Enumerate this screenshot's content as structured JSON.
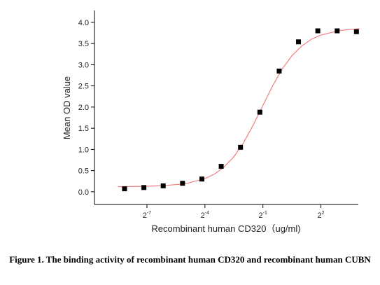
{
  "chart_data": {
    "type": "scatter",
    "xlabel": "Recombinant human  CD320（ug/ml)",
    "ylabel": "Mean OD value",
    "caption": "Figure 1. The binding activity of recombinant human CD320 and recombinant human CUBN",
    "xscale": "log2",
    "xlim": [
      0.00119,
      15.3
    ],
    "xticks": [
      {
        "value": 0.0078125,
        "label": "2^-7"
      },
      {
        "value": 0.0625,
        "label": "2^-4"
      },
      {
        "value": 0.5,
        "label": "2^-1"
      },
      {
        "value": 4,
        "label": "2^2"
      }
    ],
    "ylim": [
      -0.3,
      4.28
    ],
    "yticks": [
      {
        "value": 0,
        "label": "0.0"
      },
      {
        "value": 0.5,
        "label": "0.5"
      },
      {
        "value": 1,
        "label": "1.0"
      },
      {
        "value": 1.5,
        "label": "1.5"
      },
      {
        "value": 2,
        "label": "2.0"
      },
      {
        "value": 2.5,
        "label": "2.5"
      },
      {
        "value": 3,
        "label": "3.0"
      },
      {
        "value": 3.5,
        "label": "3.5"
      },
      {
        "value": 4,
        "label": "4.0"
      }
    ],
    "x": [
      0.0035,
      0.007,
      0.014,
      0.028,
      0.056,
      0.112,
      0.224,
      0.448,
      0.896,
      1.79,
      3.58,
      7.17,
      14.3
    ],
    "values": [
      0.07,
      0.1,
      0.14,
      0.2,
      0.3,
      0.6,
      1.05,
      1.88,
      2.85,
      3.54,
      3.8,
      3.8,
      3.78
    ],
    "color": "#000000",
    "fit_curve": {
      "color": "#f08080",
      "x": [
        0.00276,
        0.0078125,
        0.015625,
        0.03125,
        0.0625,
        0.0884,
        0.125,
        0.177,
        0.25,
        0.354,
        0.5,
        0.707,
        1,
        1.414,
        2,
        2.83,
        4,
        8,
        16
      ],
      "values": [
        0.12,
        0.13,
        0.15,
        0.19,
        0.31,
        0.42,
        0.59,
        0.83,
        1.16,
        1.58,
        2.04,
        2.5,
        2.9,
        3.21,
        3.44,
        3.6,
        3.7,
        3.81,
        3.85
      ]
    }
  }
}
